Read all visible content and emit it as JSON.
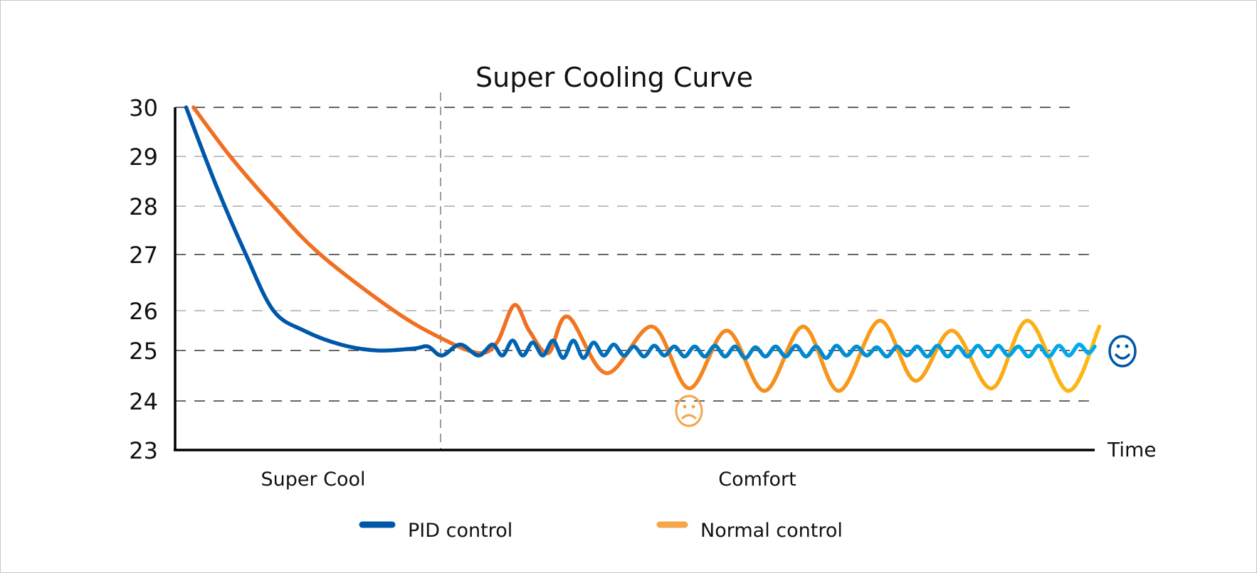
{
  "chart_data": {
    "type": "line",
    "title": "Super Cooling Curve",
    "xlabel": "Time",
    "ylabel": "",
    "ylim": [
      23,
      30
    ],
    "yticks": [
      30,
      29,
      28,
      27,
      26,
      25,
      24,
      23
    ],
    "xlim": [
      0,
      100
    ],
    "grid": true,
    "phases": [
      {
        "label": "Super Cool",
        "start": 0,
        "end": 28.9
      },
      {
        "label": "Comfort",
        "start": 28.9,
        "end": 100
      }
    ],
    "legend_position": "bottom",
    "series": [
      {
        "name": "PID control",
        "colors": [
          "#0057a8",
          "#00aeef"
        ],
        "icon": "smiley-face-icon",
        "points": [
          [
            1.2,
            30
          ],
          [
            4.5,
            28.4
          ],
          [
            7.7,
            27
          ],
          [
            10.7,
            26
          ],
          [
            14,
            25.5
          ],
          [
            18,
            25.15
          ],
          [
            22,
            25.0
          ],
          [
            26,
            25.05
          ],
          [
            27.5,
            25.1
          ],
          [
            29,
            24.9
          ],
          [
            31,
            25.15
          ],
          [
            33,
            24.9
          ],
          [
            34.5,
            25.15
          ],
          [
            35.6,
            24.9
          ],
          [
            36.7,
            25.25
          ],
          [
            37.8,
            24.9
          ],
          [
            38.9,
            25.2
          ],
          [
            40.0,
            24.9
          ],
          [
            41.1,
            25.25
          ],
          [
            42.2,
            24.85
          ],
          [
            43.3,
            25.25
          ],
          [
            44.4,
            24.85
          ],
          [
            45.5,
            25.2
          ],
          [
            46.6,
            24.9
          ],
          [
            47.7,
            25.15
          ],
          [
            48.8,
            24.9
          ],
          [
            49.9,
            25.1
          ],
          [
            51.0,
            24.88
          ],
          [
            52.1,
            25.12
          ],
          [
            53.2,
            24.9
          ],
          [
            54.3,
            25.1
          ],
          [
            55.4,
            24.88
          ],
          [
            56.5,
            25.1
          ],
          [
            57.6,
            24.88
          ],
          [
            58.7,
            25.12
          ],
          [
            59.8,
            24.88
          ],
          [
            60.9,
            25.1
          ],
          [
            62.0,
            24.85
          ],
          [
            63.1,
            25.08
          ],
          [
            64.2,
            24.88
          ],
          [
            65.3,
            25.1
          ],
          [
            66.4,
            24.88
          ],
          [
            67.5,
            25.12
          ],
          [
            68.6,
            24.88
          ],
          [
            69.7,
            25.1
          ],
          [
            70.8,
            24.85
          ],
          [
            71.9,
            25.12
          ],
          [
            73.0,
            24.9
          ],
          [
            74.1,
            25.1
          ],
          [
            75.2,
            24.9
          ],
          [
            76.3,
            25.08
          ],
          [
            77.4,
            24.88
          ],
          [
            78.5,
            25.1
          ],
          [
            79.6,
            24.9
          ],
          [
            80.7,
            25.1
          ],
          [
            81.8,
            24.88
          ],
          [
            82.9,
            25.12
          ],
          [
            84.0,
            24.88
          ],
          [
            85.1,
            25.1
          ],
          [
            86.2,
            24.88
          ],
          [
            87.3,
            25.12
          ],
          [
            88.4,
            24.88
          ],
          [
            89.5,
            25.12
          ],
          [
            90.6,
            24.9
          ],
          [
            91.7,
            25.1
          ],
          [
            92.8,
            24.88
          ],
          [
            93.9,
            25.12
          ],
          [
            95.0,
            24.88
          ],
          [
            96.1,
            25.12
          ],
          [
            97.2,
            24.9
          ],
          [
            98.3,
            25.15
          ],
          [
            99.3,
            24.95
          ],
          [
            100,
            25.1
          ]
        ]
      },
      {
        "name": "Normal control",
        "colors": [
          "#f07022",
          "#fdb913"
        ],
        "icon": "frowning-face-icon",
        "points": [
          [
            2,
            30
          ],
          [
            6,
            29
          ],
          [
            10.7,
            28
          ],
          [
            15.8,
            27
          ],
          [
            23.8,
            26
          ],
          [
            29,
            25.3
          ],
          [
            33,
            24.95
          ],
          [
            35,
            25.2
          ],
          [
            36.9,
            26.1
          ],
          [
            38.5,
            25.5
          ],
          [
            40.6,
            24.95
          ],
          [
            42.7,
            25.85
          ],
          [
            46.9,
            24.55
          ],
          [
            51.9,
            25.6
          ],
          [
            55.9,
            24.25
          ],
          [
            60,
            25.5
          ],
          [
            64.1,
            24.2
          ],
          [
            68.3,
            25.6
          ],
          [
            72.2,
            24.2
          ],
          [
            76.6,
            25.75
          ],
          [
            80.5,
            24.4
          ],
          [
            84.5,
            25.5
          ],
          [
            88.8,
            24.25
          ],
          [
            92.7,
            25.75
          ],
          [
            97.1,
            24.2
          ],
          [
            100.5,
            25.6
          ]
        ]
      }
    ]
  }
}
